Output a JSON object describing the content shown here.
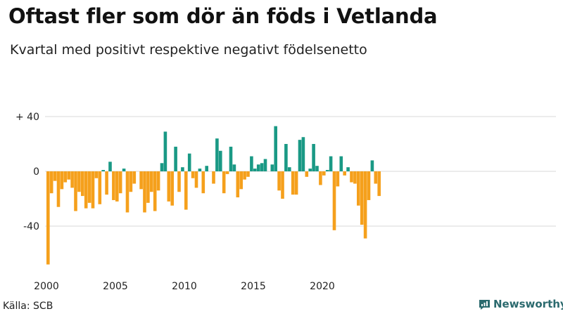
{
  "header": {
    "title": "Oftast fler som dör än föds i Vetlanda",
    "subtitle": "Kvartal med positivt respektive negativt födelsenetto"
  },
  "footer": {
    "source": "Källa: SCB",
    "brand": "Newsworthy"
  },
  "colors": {
    "positive": "#1a9985",
    "negative": "#f5a01c",
    "grid": "#d9d9d9",
    "brand": "#2b6a6e"
  },
  "chart_data": {
    "type": "bar",
    "title": "Oftast fler som dör än föds i Vetlanda",
    "subtitle": "Kvartal med positivt respektive negativt födelsenetto",
    "xlabel": "",
    "ylabel": "",
    "ylim": [
      -70,
      50
    ],
    "y_ticks": [
      {
        "value": 40,
        "label": "+ 40"
      },
      {
        "value": 0,
        "label": "0"
      },
      {
        "value": -40,
        "label": "-40"
      }
    ],
    "x_ticks": [
      {
        "label": "2000",
        "index": 0
      },
      {
        "label": "2005",
        "index": 20
      },
      {
        "label": "2010",
        "index": 40
      },
      {
        "label": "2015",
        "index": 60
      },
      {
        "label": "2020",
        "index": 80
      }
    ],
    "first_quarter": "2000 Q1",
    "values": [
      -68,
      -16,
      -7,
      -26,
      -13,
      -8,
      -6,
      -12,
      -29,
      -15,
      -18,
      -27,
      -23,
      -27,
      -5,
      -24,
      1,
      -17,
      7,
      -21,
      -22,
      -16,
      2,
      -30,
      -15,
      -9,
      0,
      -13,
      -30,
      -23,
      -15,
      -29,
      -14,
      6,
      29,
      -22,
      -25,
      18,
      -15,
      3,
      -28,
      13,
      -5,
      -12,
      2,
      -16,
      4,
      0,
      -9,
      24,
      15,
      -16,
      -2,
      18,
      5,
      -19,
      -13,
      -6,
      -4,
      11,
      2,
      5,
      6,
      9,
      0,
      5,
      33,
      -14,
      -20,
      20,
      3,
      -17,
      -17,
      23,
      25,
      -4,
      2,
      20,
      4,
      -10,
      -3,
      1,
      11,
      -43,
      -11,
      11,
      -3,
      3,
      -8,
      -9,
      -25,
      -39,
      -49,
      -21,
      8,
      -9,
      -18
    ]
  }
}
